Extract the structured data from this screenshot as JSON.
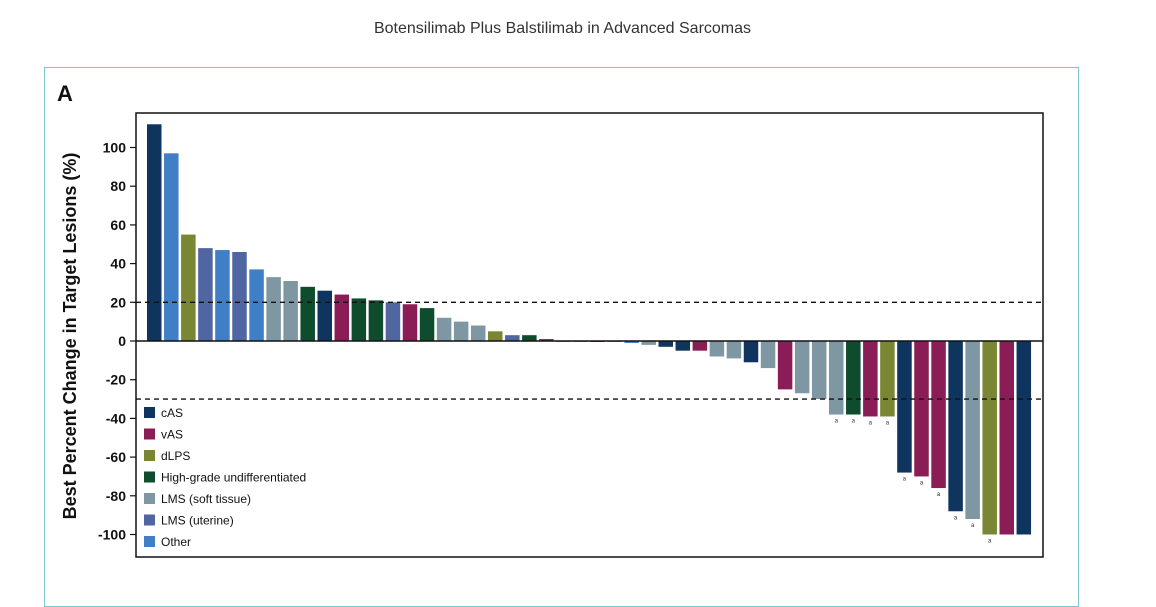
{
  "page_title": "Botensilimab Plus Balstilimab in Advanced Sarcomas",
  "panel_label": "A",
  "chart_data": {
    "type": "bar",
    "title": "",
    "ylabel": "Best Percent Change in Target Lesions (%)",
    "xlabel": "",
    "ylim": [
      -110,
      115
    ],
    "yticks": [
      100,
      80,
      60,
      40,
      20,
      0,
      -20,
      -40,
      -60,
      -80,
      -100
    ],
    "reference_lines": [
      20,
      -30
    ],
    "legend_position": "bottom-left",
    "series": [
      {
        "name": "cAS",
        "color": "#0f355f"
      },
      {
        "name": "vAS",
        "color": "#8a1d55"
      },
      {
        "name": "dLPS",
        "color": "#7a8634"
      },
      {
        "name": "High-grade undifferentiated",
        "color": "#0f4c2e"
      },
      {
        "name": "LMS (soft tissue)",
        "color": "#7f97a3"
      },
      {
        "name": "LMS (uterine)",
        "color": "#4f66a0"
      },
      {
        "name": "Other",
        "color": "#3f7fc6"
      }
    ],
    "bars": [
      {
        "value": 112,
        "group": "cAS",
        "mark": ""
      },
      {
        "value": 97,
        "group": "Other",
        "mark": ""
      },
      {
        "value": 55,
        "group": "dLPS",
        "mark": ""
      },
      {
        "value": 48,
        "group": "LMS (uterine)",
        "mark": ""
      },
      {
        "value": 47,
        "group": "Other",
        "mark": ""
      },
      {
        "value": 46,
        "group": "LMS (uterine)",
        "mark": ""
      },
      {
        "value": 37,
        "group": "Other",
        "mark": ""
      },
      {
        "value": 33,
        "group": "LMS (soft tissue)",
        "mark": ""
      },
      {
        "value": 31,
        "group": "LMS (soft tissue)",
        "mark": ""
      },
      {
        "value": 28,
        "group": "High-grade undifferentiated",
        "mark": ""
      },
      {
        "value": 26,
        "group": "cAS",
        "mark": ""
      },
      {
        "value": 24,
        "group": "vAS",
        "mark": ""
      },
      {
        "value": 22,
        "group": "High-grade undifferentiated",
        "mark": ""
      },
      {
        "value": 21,
        "group": "High-grade undifferentiated",
        "mark": ""
      },
      {
        "value": 20,
        "group": "LMS (uterine)",
        "mark": ""
      },
      {
        "value": 19,
        "group": "vAS",
        "mark": ""
      },
      {
        "value": 17,
        "group": "High-grade undifferentiated",
        "mark": ""
      },
      {
        "value": 12,
        "group": "LMS (soft tissue)",
        "mark": ""
      },
      {
        "value": 10,
        "group": "LMS (soft tissue)",
        "mark": ""
      },
      {
        "value": 8,
        "group": "LMS (soft tissue)",
        "mark": ""
      },
      {
        "value": 5,
        "group": "dLPS",
        "mark": ""
      },
      {
        "value": 3,
        "group": "LMS (uterine)",
        "mark": ""
      },
      {
        "value": 3,
        "group": "High-grade undifferentiated",
        "mark": ""
      },
      {
        "value": 1,
        "group": "vAS",
        "mark": ""
      },
      {
        "value": 0,
        "group": "LMS (soft tissue)",
        "mark": ""
      },
      {
        "value": 0,
        "group": "LMS (soft tissue)",
        "mark": ""
      },
      {
        "value": -0.5,
        "group": "vAS",
        "mark": ""
      },
      {
        "value": -0.5,
        "group": "LMS (soft tissue)",
        "mark": ""
      },
      {
        "value": -1,
        "group": "Other",
        "mark": ""
      },
      {
        "value": -2,
        "group": "LMS (soft tissue)",
        "mark": ""
      },
      {
        "value": -3,
        "group": "cAS",
        "mark": ""
      },
      {
        "value": -5,
        "group": "cAS",
        "mark": ""
      },
      {
        "value": -5,
        "group": "vAS",
        "mark": ""
      },
      {
        "value": -8,
        "group": "LMS (soft tissue)",
        "mark": ""
      },
      {
        "value": -9,
        "group": "LMS (soft tissue)",
        "mark": ""
      },
      {
        "value": -11,
        "group": "cAS",
        "mark": ""
      },
      {
        "value": -14,
        "group": "LMS (soft tissue)",
        "mark": ""
      },
      {
        "value": -25,
        "group": "vAS",
        "mark": ""
      },
      {
        "value": -27,
        "group": "LMS (soft tissue)",
        "mark": ""
      },
      {
        "value": -30,
        "group": "LMS (soft tissue)",
        "mark": ""
      },
      {
        "value": -38,
        "group": "LMS (soft tissue)",
        "mark": "a"
      },
      {
        "value": -38,
        "group": "High-grade undifferentiated",
        "mark": "a"
      },
      {
        "value": -39,
        "group": "vAS",
        "mark": "a"
      },
      {
        "value": -39,
        "group": "dLPS",
        "mark": "a"
      },
      {
        "value": -68,
        "group": "cAS",
        "mark": "a"
      },
      {
        "value": -70,
        "group": "vAS",
        "mark": "a"
      },
      {
        "value": -76,
        "group": "vAS",
        "mark": "a"
      },
      {
        "value": -88,
        "group": "cAS",
        "mark": "a"
      },
      {
        "value": -92,
        "group": "LMS (soft tissue)",
        "mark": "a"
      },
      {
        "value": -100,
        "group": "dLPS",
        "mark": "a"
      },
      {
        "value": -100,
        "group": "vAS",
        "mark": ""
      },
      {
        "value": -100,
        "group": "cAS",
        "mark": ""
      }
    ]
  }
}
